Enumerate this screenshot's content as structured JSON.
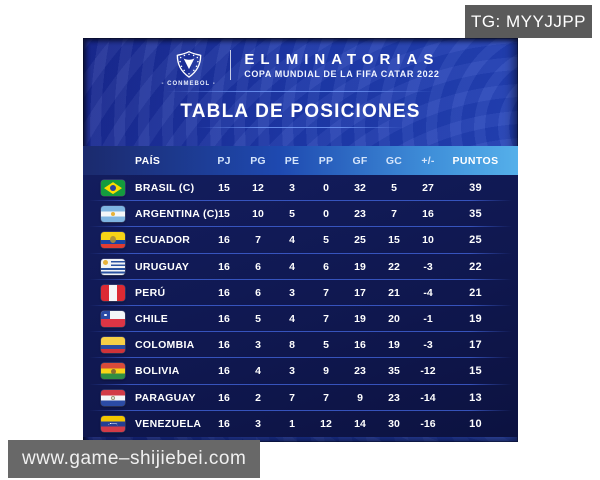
{
  "overlays": {
    "tg_label": "TG: MYYJJPP",
    "watermark": "www.game–shijiebei.com"
  },
  "header": {
    "conmebol_caption": "- CONMEBOL -",
    "competition": "ELIMINATORIAS",
    "subtitle": "COPA MUNDIAL DE LA FIFA CATAR 2022",
    "title": "TABLA DE POSICIONES"
  },
  "table": {
    "columns": [
      "PAÍS",
      "PJ",
      "PG",
      "PE",
      "PP",
      "GF",
      "GC",
      "+/-",
      "PUNTOS"
    ],
    "rows": [
      {
        "flag": "br",
        "country": "BRASIL (C)",
        "pj": 15,
        "pg": 12,
        "pe": 3,
        "pp": 0,
        "gf": 32,
        "gc": 5,
        "dif": 27,
        "pts": 39
      },
      {
        "flag": "ar",
        "country": "ARGENTINA (C)",
        "pj": 15,
        "pg": 10,
        "pe": 5,
        "pp": 0,
        "gf": 23,
        "gc": 7,
        "dif": 16,
        "pts": 35
      },
      {
        "flag": "ec",
        "country": "ECUADOR",
        "pj": 16,
        "pg": 7,
        "pe": 4,
        "pp": 5,
        "gf": 25,
        "gc": 15,
        "dif": 10,
        "pts": 25
      },
      {
        "flag": "uy",
        "country": "URUGUAY",
        "pj": 16,
        "pg": 6,
        "pe": 4,
        "pp": 6,
        "gf": 19,
        "gc": 22,
        "dif": -3,
        "pts": 22
      },
      {
        "flag": "pe",
        "country": "PERÚ",
        "pj": 16,
        "pg": 6,
        "pe": 3,
        "pp": 7,
        "gf": 17,
        "gc": 21,
        "dif": -4,
        "pts": 21
      },
      {
        "flag": "cl",
        "country": "CHILE",
        "pj": 16,
        "pg": 5,
        "pe": 4,
        "pp": 7,
        "gf": 19,
        "gc": 20,
        "dif": -1,
        "pts": 19
      },
      {
        "flag": "co",
        "country": "COLOMBIA",
        "pj": 16,
        "pg": 3,
        "pe": 8,
        "pp": 5,
        "gf": 16,
        "gc": 19,
        "dif": -3,
        "pts": 17
      },
      {
        "flag": "bo",
        "country": "BOLIVIA",
        "pj": 16,
        "pg": 4,
        "pe": 3,
        "pp": 9,
        "gf": 23,
        "gc": 35,
        "dif": -12,
        "pts": 15
      },
      {
        "flag": "py",
        "country": "PARAGUAY",
        "pj": 16,
        "pg": 2,
        "pe": 7,
        "pp": 7,
        "gf": 9,
        "gc": 23,
        "dif": -14,
        "pts": 13
      },
      {
        "flag": "ve",
        "country": "VENEZUELA",
        "pj": 16,
        "pg": 3,
        "pe": 1,
        "pp": 12,
        "gf": 14,
        "gc": 30,
        "dif": -16,
        "pts": 10
      }
    ]
  },
  "chart_data": {
    "type": "table",
    "title": "TABLA DE POSICIONES",
    "subtitle": "ELIMINATORIAS — COPA MUNDIAL DE LA FIFA CATAR 2022",
    "columns": [
      "PAÍS",
      "PJ",
      "PG",
      "PE",
      "PP",
      "GF",
      "GC",
      "+/-",
      "PUNTOS"
    ],
    "rows": [
      [
        "BRASIL (C)",
        15,
        12,
        3,
        0,
        32,
        5,
        27,
        39
      ],
      [
        "ARGENTINA (C)",
        15,
        10,
        5,
        0,
        23,
        7,
        16,
        35
      ],
      [
        "ECUADOR",
        16,
        7,
        4,
        5,
        25,
        15,
        10,
        25
      ],
      [
        "URUGUAY",
        16,
        6,
        4,
        6,
        19,
        22,
        -3,
        22
      ],
      [
        "PERÚ",
        16,
        6,
        3,
        7,
        17,
        21,
        -4,
        21
      ],
      [
        "CHILE",
        16,
        5,
        4,
        7,
        19,
        20,
        -1,
        19
      ],
      [
        "COLOMBIA",
        16,
        3,
        8,
        5,
        16,
        19,
        -3,
        17
      ],
      [
        "BOLIVIA",
        16,
        4,
        3,
        9,
        23,
        35,
        -12,
        15
      ],
      [
        "PARAGUAY",
        16,
        2,
        7,
        7,
        9,
        23,
        -14,
        13
      ],
      [
        "VENEZUELA",
        16,
        3,
        1,
        12,
        14,
        30,
        -16,
        10
      ]
    ]
  },
  "colors": {
    "card_blue": "#1e3aad",
    "table_navy": "#0f174e",
    "header_gradient_left": "#1b2a6d",
    "header_gradient_right": "#55b0ea",
    "overlay_gray": "#5a5a5a",
    "text_white": "#ffffff"
  }
}
